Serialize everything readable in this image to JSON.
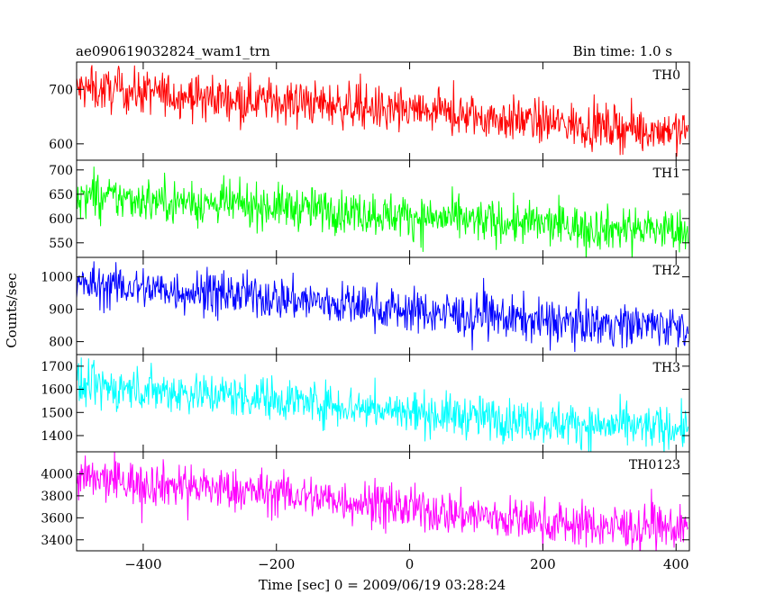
{
  "header": {
    "title": "ae090619032824_wam1_trn",
    "bin_time": "Bin time: 1.0 s"
  },
  "axes": {
    "ylabel": "Counts/sec",
    "xlabel": "Time [sec] 0 = 2009/06/19 03:28:24"
  },
  "chart_data": {
    "type": "line",
    "title": "ae090619032824_wam1_trn",
    "xlabel": "Time [sec] 0 = 2009/06/19 03:28:24",
    "ylabel": "Counts/sec",
    "xlim": [
      -500,
      420
    ],
    "x_ticks": [
      -400,
      -200,
      0,
      200,
      400
    ],
    "series": [
      {
        "name": "TH0",
        "color": "#ff0000",
        "ylim": [
          570,
          750
        ],
        "y_ticks": [
          600,
          700
        ],
        "x": [
          -500,
          -400,
          -300,
          -200,
          -100,
          0,
          100,
          200,
          300,
          420
        ],
        "values": [
          700,
          695,
          685,
          680,
          670,
          660,
          650,
          640,
          630,
          625
        ]
      },
      {
        "name": "TH1",
        "color": "#00ff00",
        "ylim": [
          520,
          720
        ],
        "y_ticks": [
          550,
          600,
          650,
          700
        ],
        "x": [
          -500,
          -400,
          -300,
          -200,
          -100,
          0,
          100,
          200,
          300,
          420
        ],
        "values": [
          645,
          640,
          630,
          625,
          615,
          605,
          595,
          588,
          580,
          575
        ]
      },
      {
        "name": "TH2",
        "color": "#0000ff",
        "ylim": [
          760,
          1060
        ],
        "y_ticks": [
          800,
          900,
          1000
        ],
        "x": [
          -500,
          -400,
          -300,
          -200,
          -100,
          0,
          100,
          200,
          300,
          420
        ],
        "values": [
          975,
          965,
          950,
          935,
          915,
          895,
          880,
          865,
          855,
          850
        ]
      },
      {
        "name": "TH3",
        "color": "#00ffff",
        "ylim": [
          1330,
          1750
        ],
        "y_ticks": [
          1400,
          1500,
          1600,
          1700
        ],
        "x": [
          -500,
          -400,
          -300,
          -200,
          -100,
          0,
          100,
          200,
          300,
          420
        ],
        "values": [
          1610,
          1600,
          1580,
          1560,
          1530,
          1500,
          1480,
          1460,
          1440,
          1430
        ]
      },
      {
        "name": "TH0123",
        "color": "#ff00ff",
        "ylim": [
          3300,
          4200
        ],
        "y_ticks": [
          3400,
          3600,
          3800,
          4000
        ],
        "x": [
          -500,
          -400,
          -300,
          -200,
          -100,
          0,
          100,
          200,
          300,
          420
        ],
        "values": [
          3950,
          3920,
          3870,
          3820,
          3760,
          3680,
          3620,
          3560,
          3520,
          3500
        ]
      }
    ]
  }
}
